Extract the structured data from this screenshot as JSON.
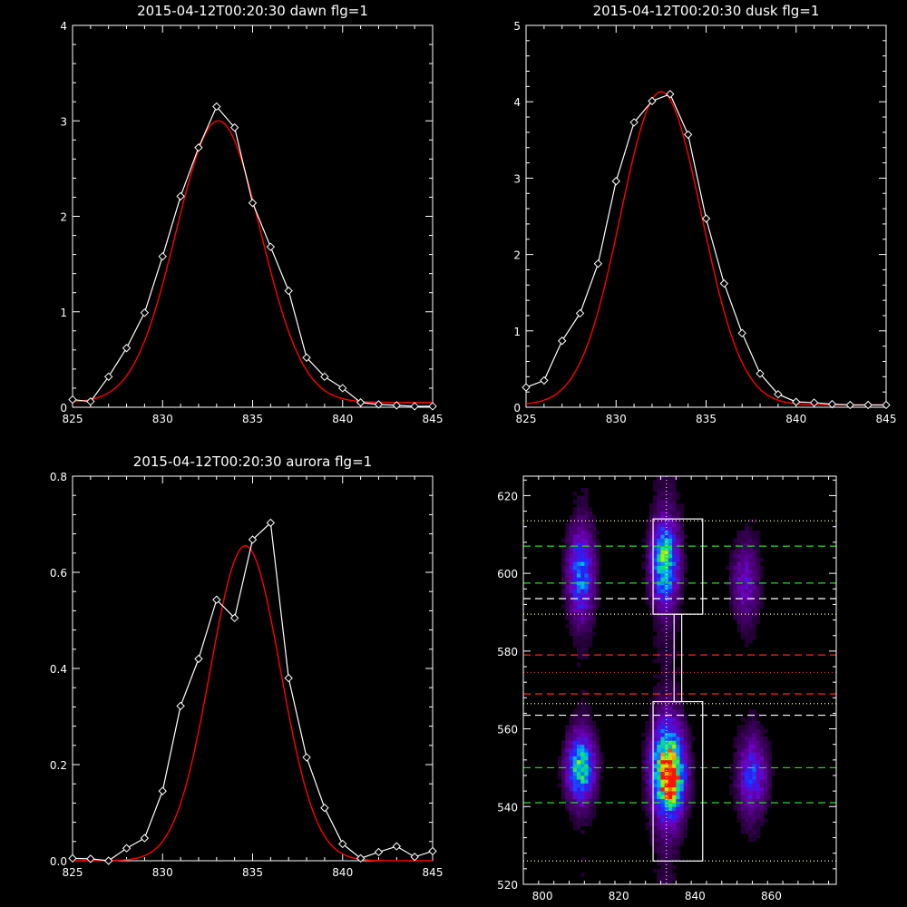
{
  "page": {
    "background": "#000000",
    "foreground": "#ffffff"
  },
  "chart_data": [
    {
      "id": "dawn",
      "type": "line",
      "title": "2015-04-12T00:20:30 dawn flg=1",
      "xlim": [
        825,
        845
      ],
      "ylim": [
        0,
        4
      ],
      "xticks": [
        825,
        830,
        835,
        840,
        845
      ],
      "yticks": [
        0,
        1,
        2,
        3,
        4
      ],
      "series": [
        {
          "style": "data",
          "color": "#ffffff",
          "marker": "diamond",
          "x": [
            825,
            826,
            827,
            828,
            829,
            830,
            831,
            832,
            833,
            834,
            835,
            836,
            837,
            838,
            839,
            840,
            841,
            842,
            843,
            844,
            845
          ],
          "y": [
            0.08,
            0.06,
            0.32,
            0.62,
            0.99,
            1.58,
            2.21,
            2.72,
            3.15,
            2.93,
            2.14,
            1.68,
            1.22,
            0.52,
            0.32,
            0.2,
            0.05,
            0.03,
            0.02,
            0.01,
            0.01
          ]
        },
        {
          "style": "fit",
          "color": "#ff0000",
          "gaussian": {
            "amplitude": 2.95,
            "center": 833.1,
            "sigma": 2.35,
            "offset": 0.05
          }
        }
      ]
    },
    {
      "id": "dusk",
      "type": "line",
      "title": "2015-04-12T00:20:30 dusk flg=1",
      "xlim": [
        825,
        845
      ],
      "ylim": [
        0,
        5
      ],
      "xticks": [
        825,
        830,
        835,
        840,
        845
      ],
      "yticks": [
        0,
        1,
        2,
        3,
        4,
        5
      ],
      "series": [
        {
          "style": "data",
          "color": "#ffffff",
          "marker": "diamond",
          "x": [
            825,
            826,
            827,
            828,
            829,
            830,
            831,
            832,
            833,
            834,
            835,
            836,
            837,
            838,
            839,
            840,
            841,
            842,
            843,
            844,
            845
          ],
          "y": [
            0.26,
            0.35,
            0.87,
            1.23,
            1.88,
            2.96,
            3.73,
            4.01,
            4.1,
            3.57,
            2.47,
            1.62,
            0.97,
            0.44,
            0.17,
            0.07,
            0.06,
            0.04,
            0.03,
            0.03,
            0.03
          ]
        },
        {
          "style": "fit",
          "color": "#ff0000",
          "gaussian": {
            "amplitude": 4.1,
            "center": 832.5,
            "sigma": 2.25,
            "offset": 0.03
          }
        }
      ]
    },
    {
      "id": "aurora",
      "type": "line",
      "title": "2015-04-12T00:20:30 aurora flg=1",
      "xlim": [
        825,
        845
      ],
      "ylim": [
        0,
        0.8
      ],
      "xticks": [
        825,
        830,
        835,
        840,
        845
      ],
      "yticks": [
        0.0,
        0.2,
        0.4,
        0.6,
        0.8
      ],
      "ytick_labels": [
        "0.0",
        "0.2",
        "0.4",
        "0.6",
        "0.8"
      ],
      "series": [
        {
          "style": "data",
          "color": "#ffffff",
          "marker": "diamond",
          "x": [
            825,
            826,
            827,
            828,
            829,
            830,
            831,
            832,
            833,
            834,
            835,
            836,
            837,
            838,
            839,
            840,
            841,
            842,
            843,
            844,
            845
          ],
          "y": [
            0.005,
            0.004,
            0.0,
            0.026,
            0.047,
            0.145,
            0.322,
            0.42,
            0.543,
            0.505,
            0.668,
            0.703,
            0.38,
            0.215,
            0.11,
            0.035,
            0.005,
            0.018,
            0.03,
            0.008,
            0.02
          ]
        },
        {
          "style": "fit",
          "color": "#ff0000",
          "gaussian": {
            "amplitude": 0.655,
            "center": 834.6,
            "sigma": 1.95,
            "offset": 0.0
          }
        }
      ]
    },
    {
      "id": "spectrogram",
      "type": "heatmap",
      "title": "",
      "xlim": [
        795,
        877
      ],
      "ylim": [
        520,
        625
      ],
      "xticks": [
        800,
        820,
        840,
        860
      ],
      "yticks": [
        520,
        540,
        560,
        580,
        600,
        620
      ],
      "blobs": [
        {
          "x": 810,
          "y": 600,
          "sx": 2.5,
          "sy": 8,
          "amp": 0.45
        },
        {
          "x": 832,
          "y": 603,
          "sx": 2.5,
          "sy": 7,
          "amp": 0.62
        },
        {
          "x": 853,
          "y": 598,
          "sx": 2.6,
          "sy": 7,
          "amp": 0.25
        },
        {
          "x": 810,
          "y": 550,
          "sx": 2.6,
          "sy": 6,
          "amp": 0.62
        },
        {
          "x": 833,
          "y": 549,
          "sx": 3.0,
          "sy": 8,
          "amp": 0.9
        },
        {
          "x": 834,
          "y": 546,
          "sx": 1.5,
          "sy": 3,
          "amp": 0.35
        },
        {
          "x": 855,
          "y": 548,
          "sx": 2.8,
          "sy": 7,
          "amp": 0.36
        }
      ],
      "boxes": [
        {
          "x0": 829,
          "x1": 842,
          "y0": 589.5,
          "y1": 614,
          "color": "#ffffff"
        },
        {
          "x0": 829,
          "x1": 842,
          "y0": 526,
          "y1": 567,
          "color": "#ffffff"
        },
        {
          "x0": 834.5,
          "x1": 836.5,
          "y0": 567,
          "y1": 589.5,
          "color": "#ffffff"
        }
      ],
      "hlines": [
        {
          "y": 613.5,
          "color": "#ffff99",
          "style": "dotted"
        },
        {
          "y": 607,
          "color": "#22dd22",
          "style": "dashed"
        },
        {
          "y": 597.5,
          "color": "#22dd22",
          "style": "dashed"
        },
        {
          "y": 593.5,
          "color": "#ffffff",
          "style": "dashed"
        },
        {
          "y": 589.5,
          "color": "#ffff99",
          "style": "dotted"
        },
        {
          "y": 579,
          "color": "#ff2222",
          "style": "dashed"
        },
        {
          "y": 574.5,
          "color": "#ff2222",
          "style": "dotted"
        },
        {
          "y": 569,
          "color": "#ff2222",
          "style": "dashed"
        },
        {
          "y": 566.5,
          "color": "#ffff99",
          "style": "dotted"
        },
        {
          "y": 563.5,
          "color": "#ffffff",
          "style": "dashed"
        },
        {
          "y": 550,
          "color": "#22dd22",
          "style": "dashed"
        },
        {
          "y": 541,
          "color": "#22dd22",
          "style": "dashed"
        },
        {
          "y": 526,
          "color": "#ffff99",
          "style": "dotted"
        }
      ],
      "vlines": [
        {
          "x": 832.5,
          "color": "#ffffff",
          "style": "dotted"
        }
      ]
    }
  ]
}
